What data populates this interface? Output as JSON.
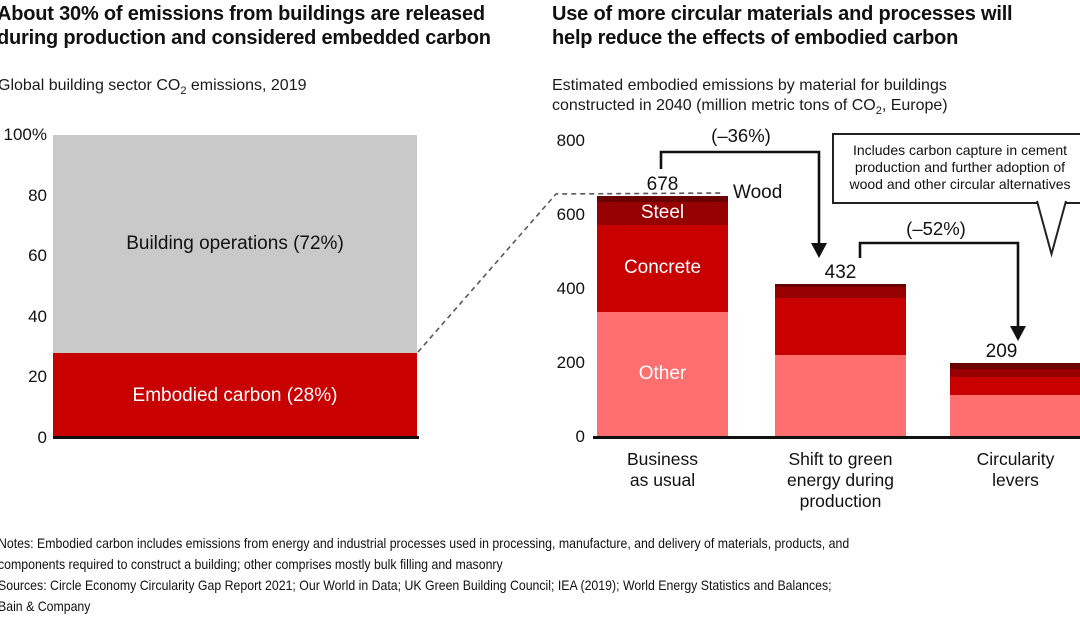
{
  "left_panel": {
    "title_lines": [
      "About 30% of emissions from buildings are released",
      "during production and considered embedded carbon"
    ],
    "subtitle": {
      "pre": "Global building sector CO",
      "sub": "2",
      "post": " emissions, 2019"
    }
  },
  "right_panel": {
    "title_lines": [
      "Use of more circular materials and processes will",
      "help reduce the effects of embodied carbon"
    ],
    "subtitle_line1": "Estimated embodied emissions by material for buildings",
    "subtitle_line2": {
      "pre": "constructed in 2040 (million metric tons of CO",
      "sub": "2",
      "post": ", Europe)"
    },
    "annotation1": "(–36%)",
    "annotation2": "(–52%)",
    "wood_label": "Wood",
    "callout_lines": [
      "Includes carbon capture in cement",
      "production and further adoption of",
      "wood and other circular alternatives"
    ]
  },
  "footer": {
    "lines": [
      "Notes: Embodied carbon includes emissions from energy and industrial processes used in processing, manufacture, and delivery of materials, products, and",
      "components required to construct a building; other comprises mostly bulk filling and masonry",
      "Sources: Circle Economy Circularity Gap Report 2021; Our World in Data; UK Green Building Council; IEA (2019); World Energy Statistics and Balances;",
      "Bain & Company"
    ]
  },
  "colors": {
    "operations_gray": "#C9C9C9",
    "embodied_red": "#C80000",
    "other_salmon": "#FF6F6F",
    "concrete_red": "#C80000",
    "steel_dark_red": "#960000",
    "wood_maroon": "#6B0000",
    "axis_black": "#111111",
    "dashed_gray": "#58585a"
  },
  "chart_data": [
    {
      "type": "bar",
      "stacked": true,
      "title": "Global building sector CO2 emissions, 2019",
      "unit": "% of total",
      "categories": [
        "2019"
      ],
      "series": [
        {
          "name": "Embodied carbon",
          "display_label": "Embodied carbon (28%)",
          "values": [
            28
          ],
          "color": "#C80000",
          "text_color": "#ffffff"
        },
        {
          "name": "Building operations",
          "display_label": "Building operations (72%)",
          "values": [
            72
          ],
          "color": "#C9C9C9",
          "text_color": "#111111"
        }
      ],
      "ylim": [
        0,
        100
      ],
      "y_ticks": [
        0,
        20,
        40,
        60,
        80,
        100
      ],
      "y_tick_labels": [
        "0",
        "20",
        "40",
        "60",
        "80",
        "100%"
      ],
      "grid": false,
      "legend": "labels inside segments"
    },
    {
      "type": "bar",
      "stacked": true,
      "title": "Estimated embodied emissions by material for buildings constructed in 2040 (million metric tons of CO2, Europe)",
      "categories": [
        "Business as usual",
        "Shift to green energy during production",
        "Circularity levers"
      ],
      "category_lines": [
        [
          "Business",
          "as usual"
        ],
        [
          "Shift to green",
          "energy during",
          "production"
        ],
        [
          "Circularity",
          "levers"
        ]
      ],
      "totals": [
        678,
        432,
        209
      ],
      "series": [
        {
          "name": "Other",
          "values": [
            353,
            232,
            119
          ],
          "color": "#FF6F6F",
          "text_color": "#ffffff"
        },
        {
          "name": "Concrete",
          "values": [
            245,
            160,
            50
          ],
          "color": "#C80000",
          "text_color": "#ffffff"
        },
        {
          "name": "Steel",
          "values": [
            65,
            30,
            22
          ],
          "color": "#960000",
          "text_color": "#ffffff"
        },
        {
          "name": "Wood",
          "values": [
            15,
            10,
            18
          ],
          "color": "#6B0000",
          "text_color": "#111111"
        }
      ],
      "ylim": [
        0,
        800
      ],
      "y_ticks": [
        0,
        200,
        400,
        600,
        800
      ],
      "y_tick_labels": [
        "0",
        "200",
        "400",
        "600",
        "800"
      ],
      "grid": false,
      "legend": "labels inside first bar; Wood labeled externally",
      "annotations": [
        {
          "text": "(–36%)",
          "from": "Business as usual",
          "to": "Shift to green energy during production"
        },
        {
          "text": "(–52%)",
          "from": "Shift to green energy during production",
          "to": "Circularity levers"
        },
        {
          "text": "Includes carbon capture in cement production and further adoption of wood and other circular alternatives",
          "points_to": "Circularity levers"
        }
      ]
    }
  ]
}
